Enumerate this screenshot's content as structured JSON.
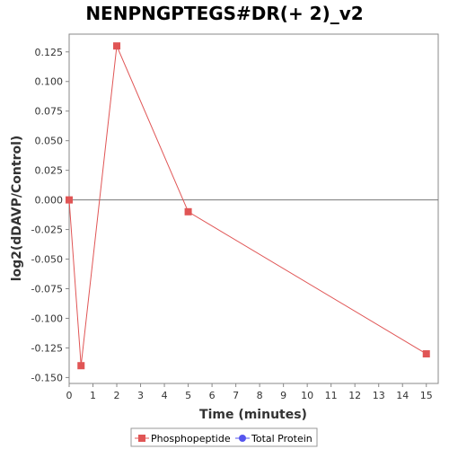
{
  "chart_data": {
    "type": "line",
    "title": "NENPNGPTEGS#DR(+ 2)_v2",
    "xlabel": "Time (minutes)",
    "ylabel": "log2(dDAVP/Control)",
    "xlim": [
      0,
      15.5
    ],
    "ylim": [
      -0.155,
      0.14
    ],
    "x_ticks": [
      0,
      1,
      2,
      3,
      4,
      5,
      6,
      7,
      8,
      9,
      10,
      11,
      12,
      13,
      14,
      15
    ],
    "y_ticks": [
      -0.15,
      -0.125,
      -0.1,
      -0.075,
      -0.05,
      -0.025,
      0.0,
      0.025,
      0.05,
      0.075,
      0.1,
      0.125
    ],
    "y_tick_labels": [
      "-0.150",
      "-0.125",
      "-0.100",
      "-0.075",
      "-0.050",
      "-0.025",
      "0.000",
      "0.025",
      "0.050",
      "0.075",
      "0.100",
      "0.125"
    ],
    "zero_line": true,
    "grid": false,
    "legend_position": "bottom",
    "series": [
      {
        "name": "Phosphopeptide",
        "color": "#e05555",
        "marker": "square",
        "x": [
          0,
          0.5,
          2,
          5,
          15
        ],
        "y": [
          0.0,
          -0.14,
          0.13,
          -0.01,
          -0.13
        ]
      },
      {
        "name": "Total Protein",
        "color": "#5555ee",
        "marker": "circle",
        "x": [],
        "y": []
      }
    ]
  }
}
